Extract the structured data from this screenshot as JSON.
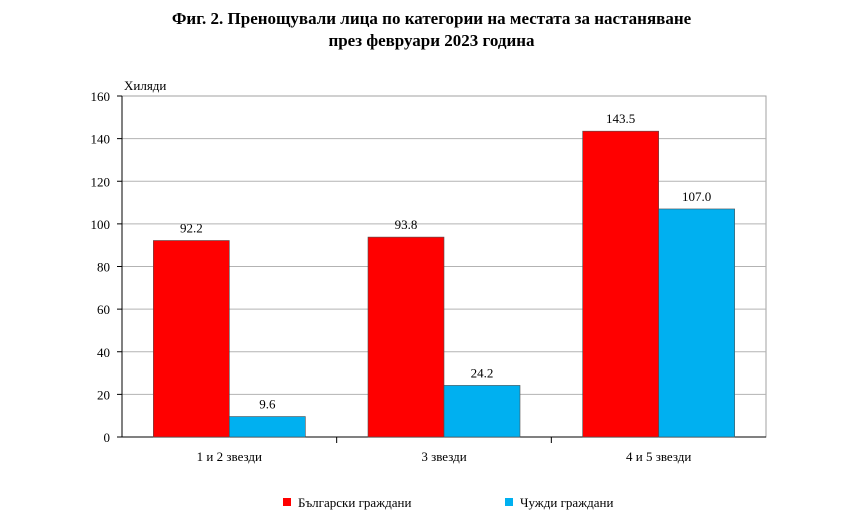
{
  "title_line1": "Фиг. 2. Пренощували лица по категории на местата за настаняване",
  "title_line2": "през февруари 2023 година",
  "chart_data": {
    "type": "bar",
    "title": "Фиг. 2. Пренощували лица по категории на местата за настаняване през февруари 2023 година",
    "ylabel": "Хиляди",
    "xlabel": "",
    "categories": [
      "1 и 2 звезди",
      "3 звезди",
      "4 и 5 звезди"
    ],
    "series": [
      {
        "name": "Български граждани",
        "color": "#ff0000",
        "values": [
          92.2,
          93.8,
          143.5
        ],
        "labels": [
          "92.2",
          "93.8",
          "143.5"
        ]
      },
      {
        "name": "Чужди граждани",
        "color": "#00b0f0",
        "values": [
          9.6,
          24.2,
          107.0
        ],
        "labels": [
          "9.6",
          "24.2",
          "107.0"
        ]
      }
    ],
    "ylim": [
      0,
      160
    ],
    "yticks": [
      0,
      20,
      40,
      60,
      80,
      100,
      120,
      140,
      160
    ],
    "grid": true,
    "legend": "bottom"
  }
}
